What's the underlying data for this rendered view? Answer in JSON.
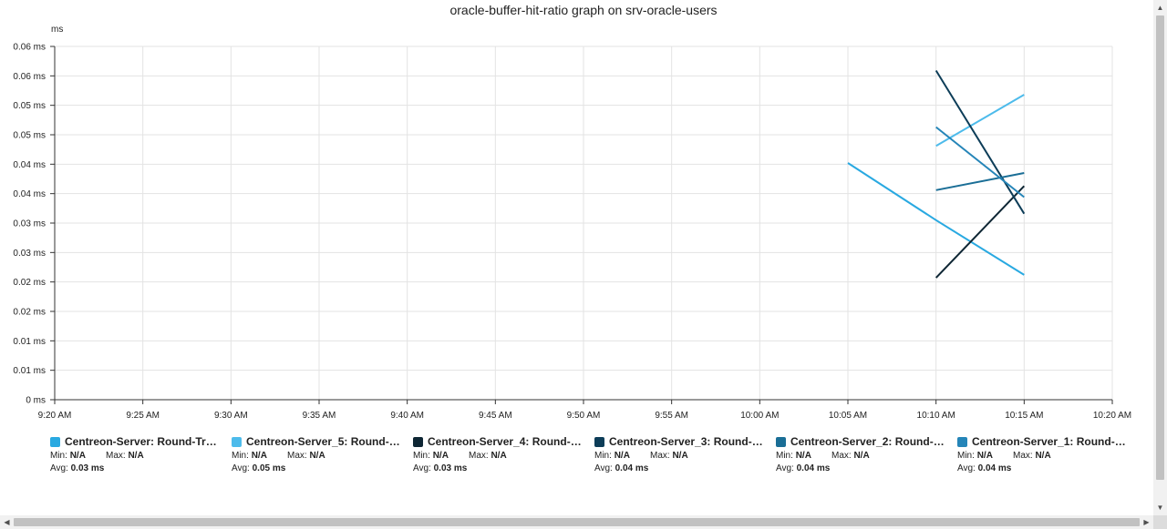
{
  "chart_data": {
    "type": "line",
    "title": "oracle-buffer-hit-ratio graph on srv-oracle-users",
    "unit_label": "ms",
    "xlabel": "",
    "ylabel": "",
    "x_ticks": [
      "9:20 AM",
      "9:25 AM",
      "9:30 AM",
      "9:35 AM",
      "9:40 AM",
      "9:45 AM",
      "9:50 AM",
      "9:55 AM",
      "10:00 AM",
      "10:05 AM",
      "10:10 AM",
      "10:15 AM",
      "10:20 AM"
    ],
    "y_tick_labels": [
      "0 ms",
      "0.01 ms",
      "0.01 ms",
      "0.02 ms",
      "0.02 ms",
      "0.03 ms",
      "0.03 ms",
      "0.04 ms",
      "0.04 ms",
      "0.05 ms",
      "0.05 ms",
      "0.06 ms",
      "0.06 ms"
    ],
    "ylim": [
      0,
      0.06
    ],
    "grid": true,
    "series": [
      {
        "name": "Centreon-Server: Round-Trip ...",
        "color": "#29a9e1",
        "points": [
          {
            "x": "10:05 AM",
            "y": 0.0402
          },
          {
            "x": "10:10 AM",
            "y": 0.0305
          },
          {
            "x": "10:15 AM",
            "y": 0.0212
          }
        ]
      },
      {
        "name": "Centreon-Server_5: Round-Tr...",
        "color": "#4dbbeb",
        "points": [
          {
            "x": "10:10 AM",
            "y": 0.0431
          },
          {
            "x": "10:15 AM",
            "y": 0.0518
          }
        ]
      },
      {
        "name": "Centreon-Server_4: Round-Tr...",
        "color": "#0e2634",
        "points": [
          {
            "x": "10:10 AM",
            "y": 0.0207
          },
          {
            "x": "10:15 AM",
            "y": 0.0363
          }
        ]
      },
      {
        "name": "Centreon-Server_3: Round-Tr...",
        "color": "#0d3d58",
        "points": [
          {
            "x": "10:10 AM",
            "y": 0.0559
          },
          {
            "x": "10:15 AM",
            "y": 0.0316
          }
        ]
      },
      {
        "name": "Centreon-Server_2: Round-Tr...",
        "color": "#1a6e96",
        "points": [
          {
            "x": "10:10 AM",
            "y": 0.0356
          },
          {
            "x": "10:15 AM",
            "y": 0.0385
          }
        ]
      },
      {
        "name": "Centreon-Server_1: Round-Tr...",
        "color": "#2585b8",
        "points": [
          {
            "x": "10:10 AM",
            "y": 0.0463
          },
          {
            "x": "10:15 AM",
            "y": 0.0344
          }
        ]
      }
    ]
  },
  "legend": [
    {
      "name": "Centreon-Server: Round-Trip ...",
      "color": "#29a9e1",
      "min_label": "Min:",
      "min": "N/A",
      "max_label": "Max:",
      "max": "N/A",
      "avg_label": "Avg:",
      "avg": "0.03 ms"
    },
    {
      "name": "Centreon-Server_5: Round-Tr...",
      "color": "#4dbbeb",
      "min_label": "Min:",
      "min": "N/A",
      "max_label": "Max:",
      "max": "N/A",
      "avg_label": "Avg:",
      "avg": "0.05 ms"
    },
    {
      "name": "Centreon-Server_4: Round-Tr...",
      "color": "#0e2634",
      "min_label": "Min:",
      "min": "N/A",
      "max_label": "Max:",
      "max": "N/A",
      "avg_label": "Avg:",
      "avg": "0.03 ms"
    },
    {
      "name": "Centreon-Server_3: Round-Tr...",
      "color": "#0d3d58",
      "min_label": "Min:",
      "min": "N/A",
      "max_label": "Max:",
      "max": "N/A",
      "avg_label": "Avg:",
      "avg": "0.04 ms"
    },
    {
      "name": "Centreon-Server_2: Round-Tr...",
      "color": "#1a6e96",
      "min_label": "Min:",
      "min": "N/A",
      "max_label": "Max:",
      "max": "N/A",
      "avg_label": "Avg:",
      "avg": "0.04 ms"
    },
    {
      "name": "Centreon-Server_1: Round-Tr...",
      "color": "#2585b8",
      "min_label": "Min:",
      "min": "N/A",
      "max_label": "Max:",
      "max": "N/A",
      "avg_label": "Avg:",
      "avg": "0.04 ms"
    }
  ],
  "scrollbars": {
    "up_icon": "triangle-up",
    "down_icon": "triangle-down",
    "left_icon": "triangle-left",
    "right_icon": "triangle-right"
  }
}
